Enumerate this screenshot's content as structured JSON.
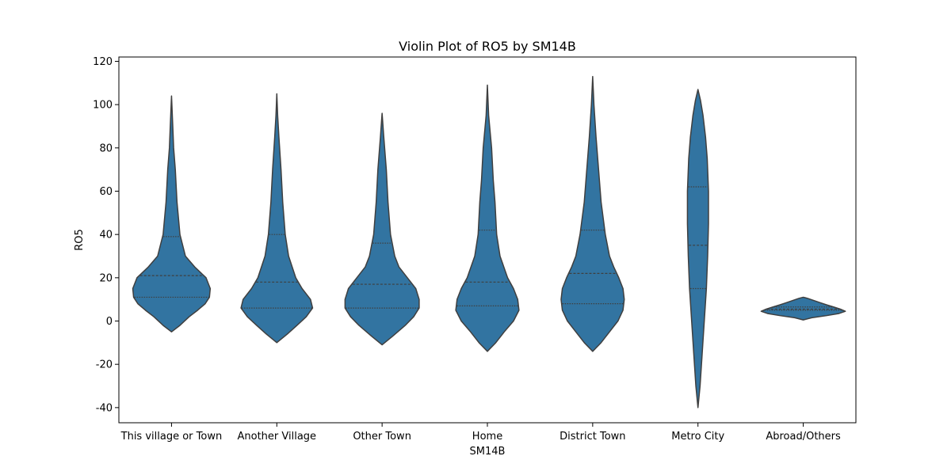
{
  "chart_data": {
    "type": "violin",
    "title": "Violin Plot of RO5 by SM14B",
    "xlabel": "SM14B",
    "ylabel": "RO5",
    "ylim": [
      -47,
      122
    ],
    "yticks": [
      -40,
      -20,
      0,
      20,
      40,
      60,
      80,
      100,
      120
    ],
    "grid": false,
    "color": "#3274a1",
    "categories": [
      "This village or Town",
      "Another Village",
      "Other Town",
      "Home",
      "District Town",
      "Metro City",
      "Abroad/Others"
    ],
    "violins": [
      {
        "min": -5,
        "max": 104,
        "q1": 11,
        "median": 21,
        "q3": 39,
        "profile": [
          [
            -5,
            0
          ],
          [
            -2,
            0.2
          ],
          [
            2,
            0.42
          ],
          [
            5,
            0.62
          ],
          [
            8,
            0.8
          ],
          [
            11,
            0.9
          ],
          [
            15,
            0.92
          ],
          [
            20,
            0.82
          ],
          [
            25,
            0.55
          ],
          [
            30,
            0.33
          ],
          [
            40,
            0.2
          ],
          [
            55,
            0.13
          ],
          [
            70,
            0.09
          ],
          [
            80,
            0.05
          ],
          [
            90,
            0.03
          ],
          [
            104,
            0
          ]
        ]
      },
      {
        "min": -10,
        "max": 105,
        "q1": 6,
        "median": 18,
        "q3": 40,
        "profile": [
          [
            -10,
            0
          ],
          [
            -6,
            0.25
          ],
          [
            -2,
            0.48
          ],
          [
            2,
            0.7
          ],
          [
            6,
            0.85
          ],
          [
            10,
            0.8
          ],
          [
            15,
            0.6
          ],
          [
            20,
            0.45
          ],
          [
            30,
            0.28
          ],
          [
            40,
            0.2
          ],
          [
            55,
            0.14
          ],
          [
            70,
            0.1
          ],
          [
            85,
            0.05
          ],
          [
            95,
            0.02
          ],
          [
            105,
            0
          ]
        ]
      },
      {
        "min": -11,
        "max": 96,
        "q1": 6,
        "median": 17,
        "q3": 36,
        "profile": [
          [
            -11,
            0
          ],
          [
            -7,
            0.25
          ],
          [
            -2,
            0.55
          ],
          [
            2,
            0.75
          ],
          [
            6,
            0.88
          ],
          [
            10,
            0.88
          ],
          [
            15,
            0.8
          ],
          [
            20,
            0.6
          ],
          [
            25,
            0.4
          ],
          [
            30,
            0.3
          ],
          [
            40,
            0.2
          ],
          [
            55,
            0.14
          ],
          [
            70,
            0.1
          ],
          [
            85,
            0.04
          ],
          [
            96,
            0
          ]
        ]
      },
      {
        "min": -14,
        "max": 109,
        "q1": 7,
        "median": 18,
        "q3": 42,
        "profile": [
          [
            -14,
            0
          ],
          [
            -10,
            0.2
          ],
          [
            -5,
            0.4
          ],
          [
            0,
            0.62
          ],
          [
            5,
            0.75
          ],
          [
            10,
            0.72
          ],
          [
            15,
            0.62
          ],
          [
            20,
            0.48
          ],
          [
            30,
            0.3
          ],
          [
            40,
            0.22
          ],
          [
            55,
            0.18
          ],
          [
            65,
            0.14
          ],
          [
            80,
            0.1
          ],
          [
            95,
            0.03
          ],
          [
            109,
            0
          ]
        ]
      },
      {
        "min": -14,
        "max": 113,
        "q1": 8,
        "median": 22,
        "q3": 42,
        "profile": [
          [
            -14,
            0
          ],
          [
            -10,
            0.2
          ],
          [
            -5,
            0.4
          ],
          [
            0,
            0.6
          ],
          [
            5,
            0.72
          ],
          [
            10,
            0.75
          ],
          [
            15,
            0.72
          ],
          [
            20,
            0.62
          ],
          [
            25,
            0.5
          ],
          [
            30,
            0.4
          ],
          [
            40,
            0.3
          ],
          [
            55,
            0.2
          ],
          [
            70,
            0.14
          ],
          [
            85,
            0.08
          ],
          [
            100,
            0.03
          ],
          [
            113,
            0
          ]
        ]
      },
      {
        "min": -40,
        "max": 107,
        "q1": 15,
        "median": 35,
        "q3": 62,
        "profile": [
          [
            -40,
            0
          ],
          [
            -30,
            0.05
          ],
          [
            -15,
            0.1
          ],
          [
            0,
            0.15
          ],
          [
            15,
            0.2
          ],
          [
            30,
            0.23
          ],
          [
            45,
            0.25
          ],
          [
            60,
            0.25
          ],
          [
            75,
            0.22
          ],
          [
            85,
            0.18
          ],
          [
            95,
            0.12
          ],
          [
            102,
            0.06
          ],
          [
            107,
            0
          ]
        ]
      },
      {
        "min": 0.5,
        "max": 11,
        "q1": 5,
        "median": 5.5,
        "q3": 6.5,
        "profile": [
          [
            0.5,
            0
          ],
          [
            1.5,
            0.2
          ],
          [
            2.5,
            0.55
          ],
          [
            3.5,
            0.85
          ],
          [
            4.5,
            1.0
          ],
          [
            5.5,
            0.88
          ],
          [
            6.5,
            0.72
          ],
          [
            7.5,
            0.55
          ],
          [
            8.5,
            0.4
          ],
          [
            9.5,
            0.25
          ],
          [
            10.5,
            0.1
          ],
          [
            11,
            0
          ]
        ]
      }
    ]
  }
}
